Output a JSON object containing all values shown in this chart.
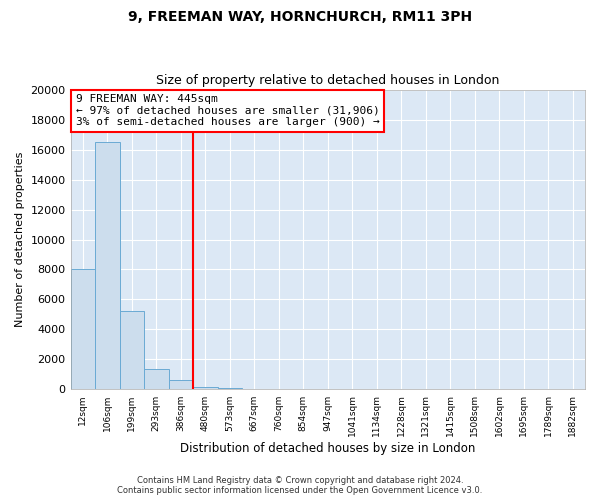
{
  "title_line1": "9, FREEMAN WAY, HORNCHURCH, RM11 3PH",
  "title_line2": "Size of property relative to detached houses in London",
  "xlabel": "Distribution of detached houses by size in London",
  "ylabel": "Number of detached properties",
  "categories": [
    "12sqm",
    "106sqm",
    "199sqm",
    "293sqm",
    "386sqm",
    "480sqm",
    "573sqm",
    "667sqm",
    "760sqm",
    "854sqm",
    "947sqm",
    "1041sqm",
    "1134sqm",
    "1228sqm",
    "1321sqm",
    "1415sqm",
    "1508sqm",
    "1602sqm",
    "1695sqm",
    "1789sqm",
    "1882sqm"
  ],
  "values": [
    8000,
    16500,
    5200,
    1350,
    600,
    180,
    120,
    0,
    0,
    0,
    0,
    0,
    0,
    0,
    0,
    0,
    0,
    0,
    0,
    0,
    0
  ],
  "bar_color": "#ccdded",
  "bar_edge_color": "#6aaad4",
  "vline_x": 4.5,
  "vline_color": "red",
  "ylim": [
    0,
    20000
  ],
  "yticks": [
    0,
    2000,
    4000,
    6000,
    8000,
    10000,
    12000,
    14000,
    16000,
    18000,
    20000
  ],
  "annotation_title": "9 FREEMAN WAY: 445sqm",
  "annotation_line1": "← 97% of detached houses are smaller (31,906)",
  "annotation_line2": "3% of semi-detached houses are larger (900) →",
  "footer_line1": "Contains HM Land Registry data © Crown copyright and database right 2024.",
  "footer_line2": "Contains public sector information licensed under the Open Government Licence v3.0.",
  "fig_bg_color": "#ffffff",
  "plot_bg_color": "#dce8f5",
  "grid_color": "#ffffff",
  "title1_fontsize": 10,
  "title2_fontsize": 9,
  "ylabel_fontsize": 8,
  "xlabel_fontsize": 8.5,
  "ytick_fontsize": 8,
  "xtick_fontsize": 6.5,
  "footer_fontsize": 6,
  "ann_fontsize": 8
}
